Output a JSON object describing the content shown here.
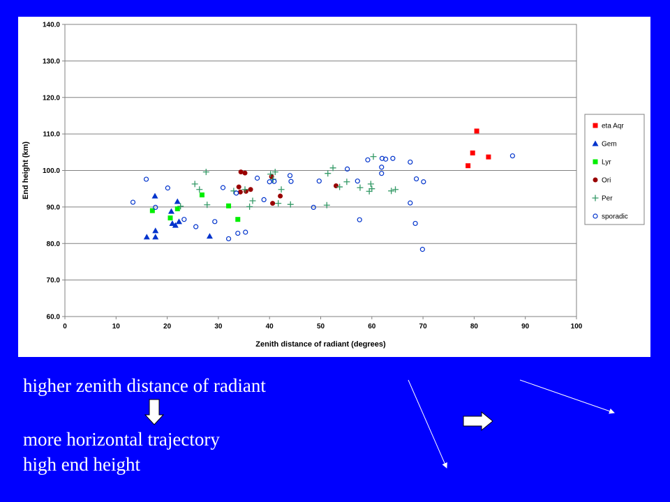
{
  "colors": {
    "slide_background": "#0000ff",
    "text": "#ffffff",
    "eta_aqr": "#ff0000",
    "gem": "#0033cc",
    "lyr": "#00ee00",
    "ori": "#990000",
    "per": "#339966",
    "sporadic": "#0033cc"
  },
  "caption": {
    "line1": "higher zenith distance of radiant",
    "line2": "more horizontal trajectory",
    "line3": "high end height"
  },
  "icons": [
    "down-arrow-icon",
    "right-arrow-icon",
    "steep-trajectory-line",
    "shallow-trajectory-line"
  ],
  "chart_data": {
    "type": "scatter",
    "xlabel": "Zenith distance of radiant (degrees)",
    "ylabel": "End height (km)",
    "xlim": [
      0,
      100
    ],
    "ylim": [
      60,
      140
    ],
    "xticks": [
      "0",
      "10",
      "20",
      "30",
      "40",
      "50",
      "60",
      "70",
      "80",
      "90",
      "100"
    ],
    "yticks": [
      "60.0",
      "70.0",
      "80.0",
      "90.0",
      "100.0",
      "110.0",
      "120.0",
      "130.0",
      "140.0"
    ],
    "grid": "horizontal",
    "legend_position": "right",
    "series": [
      {
        "name": "eta Aqr",
        "marker": "square",
        "color": "#ff0000",
        "points": [
          [
            78.8,
            101.3
          ],
          [
            79.7,
            104.8
          ],
          [
            80.5,
            110.8
          ],
          [
            82.8,
            103.7
          ]
        ]
      },
      {
        "name": "Gem",
        "marker": "triangle",
        "color": "#0033cc",
        "points": [
          [
            16.0,
            81.8
          ],
          [
            17.6,
            93.0
          ],
          [
            17.7,
            83.5
          ],
          [
            17.7,
            81.8
          ],
          [
            20.8,
            88.8
          ],
          [
            21.0,
            85.5
          ],
          [
            21.6,
            85.0
          ],
          [
            22.0,
            91.5
          ],
          [
            22.3,
            86.0
          ],
          [
            28.3,
            82.0
          ]
        ]
      },
      {
        "name": "Lyr",
        "marker": "square",
        "color": "#00ee00",
        "points": [
          [
            17.1,
            89.0
          ],
          [
            20.6,
            87.0
          ],
          [
            22.0,
            89.5
          ],
          [
            26.8,
            93.3
          ],
          [
            32.0,
            90.3
          ],
          [
            33.8,
            86.6
          ]
        ]
      },
      {
        "name": "Ori",
        "marker": "circle",
        "color": "#990000",
        "points": [
          [
            34.0,
            95.5
          ],
          [
            34.3,
            94.1
          ],
          [
            34.4,
            99.6
          ],
          [
            35.2,
            99.3
          ],
          [
            35.4,
            94.3
          ],
          [
            36.3,
            94.8
          ],
          [
            40.4,
            98.3
          ],
          [
            40.6,
            91.0
          ],
          [
            42.1,
            93.0
          ],
          [
            53.0,
            95.8
          ]
        ]
      },
      {
        "name": "Per",
        "marker": "plus",
        "color": "#339966",
        "points": [
          [
            22.6,
            90.2
          ],
          [
            25.4,
            96.3
          ],
          [
            26.3,
            94.8
          ],
          [
            27.6,
            99.6
          ],
          [
            27.8,
            90.6
          ],
          [
            33.0,
            94.4
          ],
          [
            35.2,
            94.8
          ],
          [
            36.1,
            90.1
          ],
          [
            36.7,
            91.7
          ],
          [
            40.2,
            99.0
          ],
          [
            40.7,
            97.6
          ],
          [
            41.1,
            99.6
          ],
          [
            41.7,
            91.0
          ],
          [
            42.3,
            94.8
          ],
          [
            44.1,
            90.7
          ],
          [
            51.2,
            90.5
          ],
          [
            51.4,
            99.2
          ],
          [
            52.4,
            100.7
          ],
          [
            53.7,
            95.5
          ],
          [
            55.1,
            96.9
          ],
          [
            57.7,
            95.3
          ],
          [
            59.5,
            94.3
          ],
          [
            59.8,
            96.3
          ],
          [
            60.0,
            95.0
          ],
          [
            60.3,
            103.8
          ],
          [
            63.8,
            94.4
          ],
          [
            64.6,
            94.8
          ]
        ]
      },
      {
        "name": "sporadic",
        "marker": "open-circle",
        "color": "#0033cc",
        "points": [
          [
            13.3,
            91.3
          ],
          [
            15.9,
            97.6
          ],
          [
            17.7,
            89.9
          ],
          [
            20.1,
            95.2
          ],
          [
            23.3,
            86.6
          ],
          [
            25.6,
            84.6
          ],
          [
            29.3,
            86.0
          ],
          [
            30.9,
            95.3
          ],
          [
            32.0,
            81.3
          ],
          [
            33.5,
            93.8
          ],
          [
            33.8,
            82.8
          ],
          [
            35.3,
            83.1
          ],
          [
            37.6,
            97.9
          ],
          [
            38.9,
            92.0
          ],
          [
            40.0,
            96.9
          ],
          [
            40.9,
            97.0
          ],
          [
            44.0,
            98.6
          ],
          [
            44.2,
            97.0
          ],
          [
            48.6,
            89.9
          ],
          [
            49.7,
            97.1
          ],
          [
            55.2,
            100.4
          ],
          [
            57.2,
            97.1
          ],
          [
            57.6,
            86.5
          ],
          [
            59.2,
            102.9
          ],
          [
            61.9,
            99.2
          ],
          [
            61.9,
            100.9
          ],
          [
            62.0,
            103.3
          ],
          [
            62.7,
            103.1
          ],
          [
            64.1,
            103.3
          ],
          [
            67.5,
            102.3
          ],
          [
            67.5,
            91.1
          ],
          [
            68.5,
            85.5
          ],
          [
            68.7,
            97.7
          ],
          [
            69.9,
            78.4
          ],
          [
            70.1,
            96.9
          ],
          [
            87.5,
            104.0
          ]
        ]
      }
    ]
  }
}
